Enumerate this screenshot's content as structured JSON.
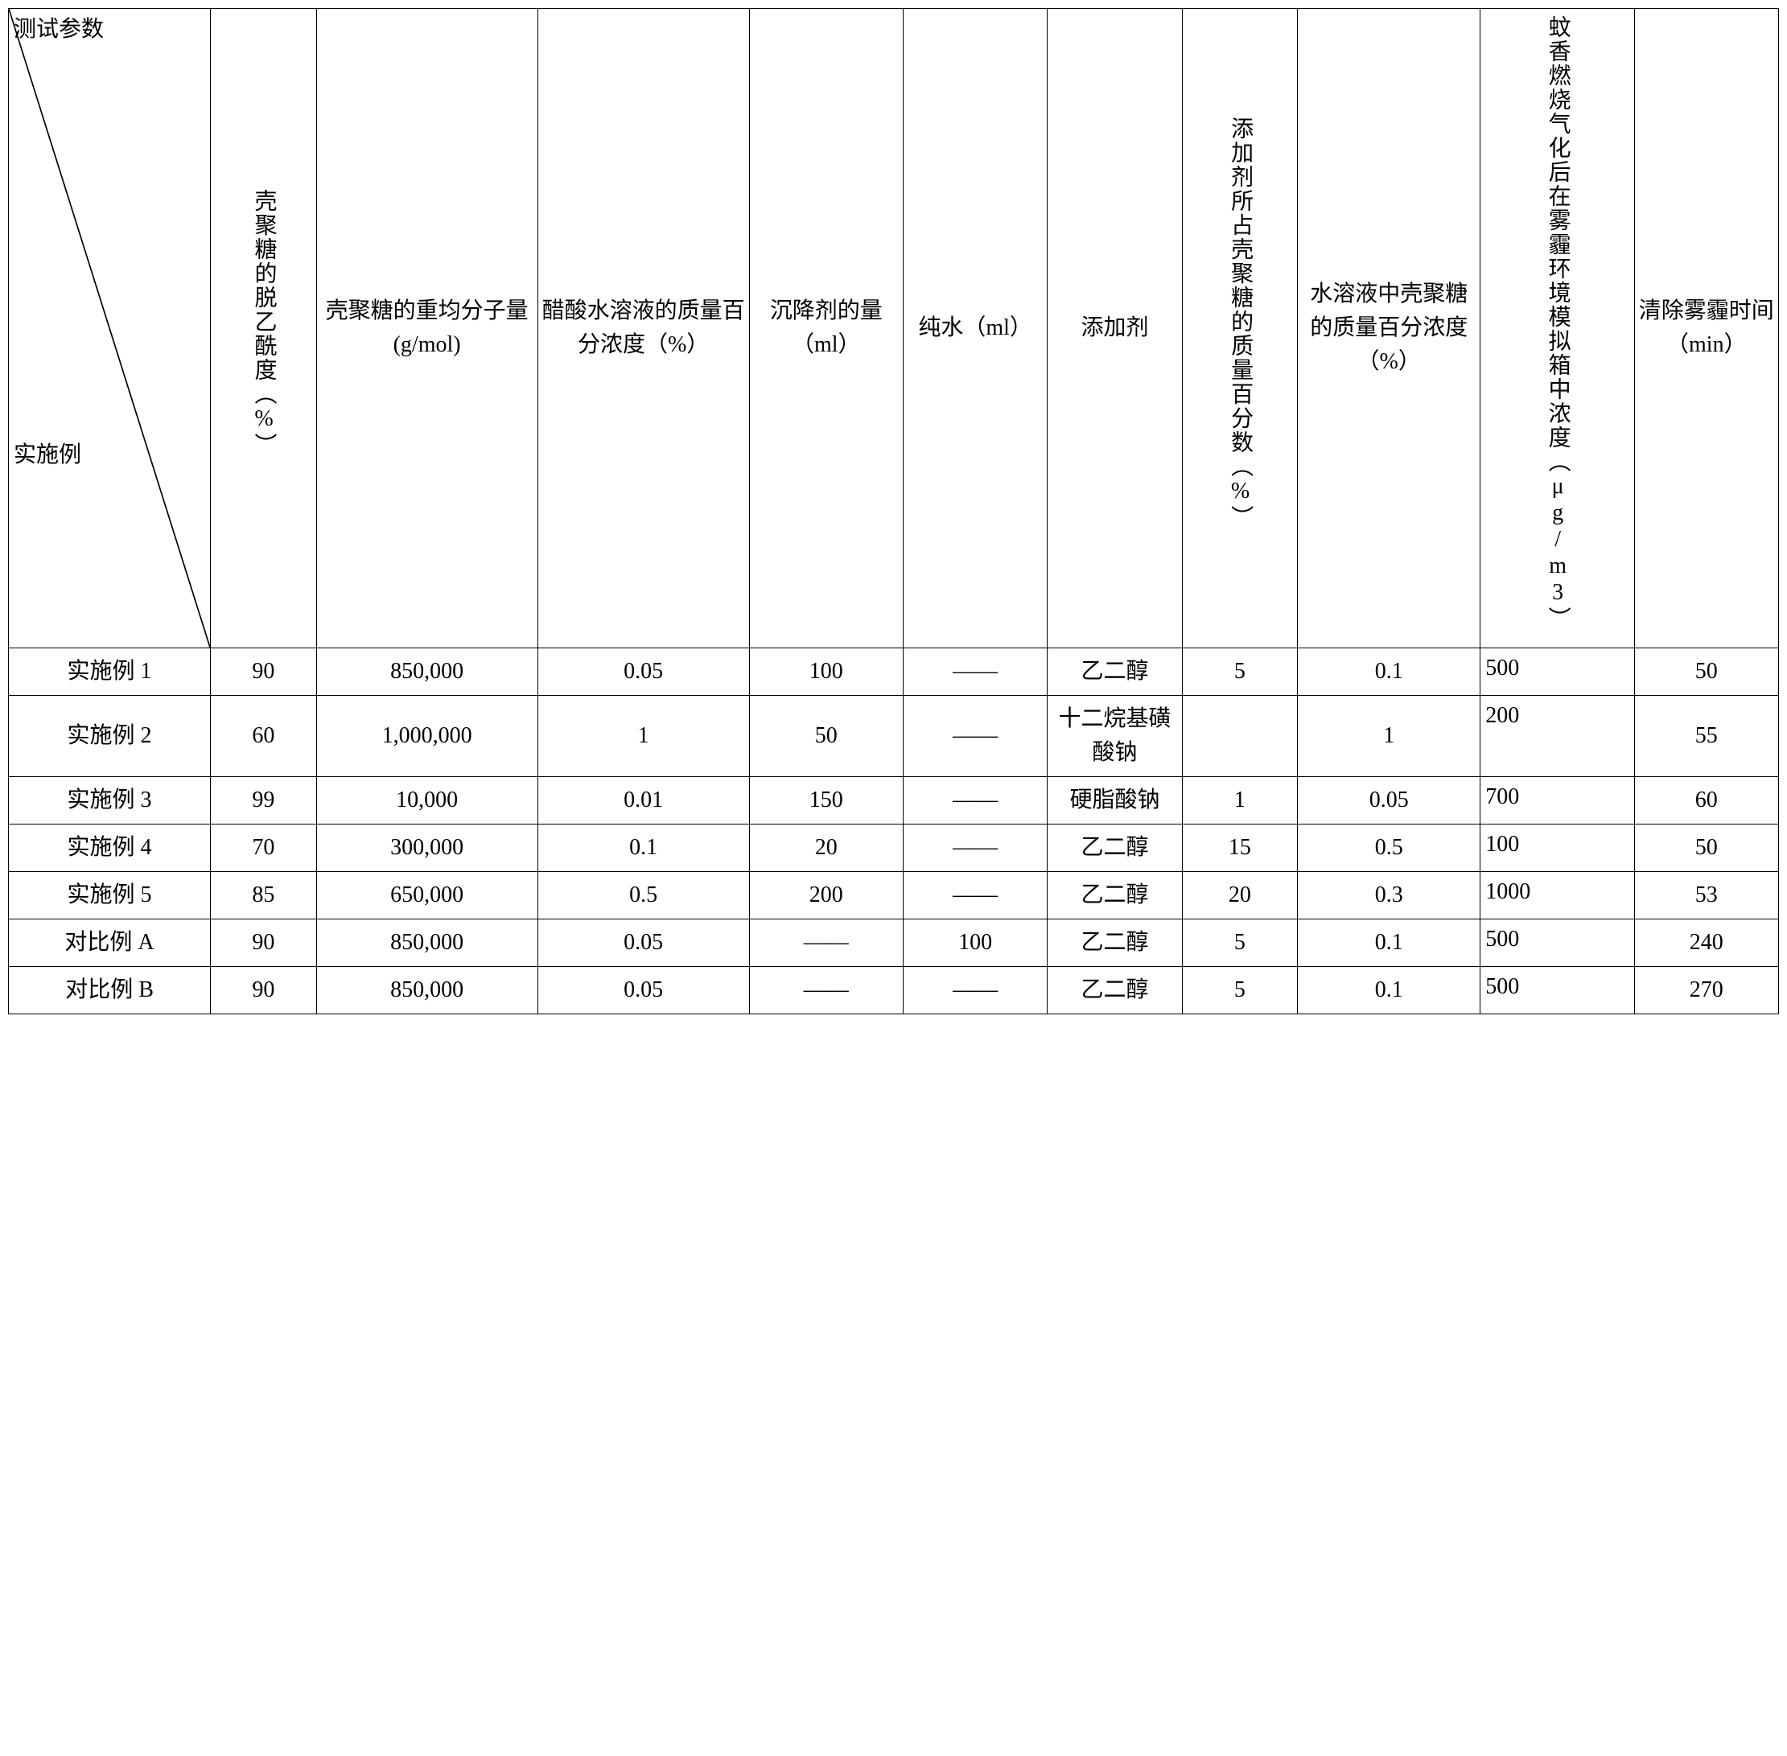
{
  "header": {
    "diag_top": "测试参数",
    "diag_bottom": "实施例",
    "cols": [
      "壳聚糖的脱乙酰度（%）",
      "壳聚糖的重均分子量(g/mol)",
      "醋酸水溶液的质量百分浓度（%）",
      "沉降剂的量（ml）",
      "纯水（ml）",
      "添加剂",
      "添加剂所占壳聚糖的质量百分数（%）",
      "水溶液中壳聚糖的质量百分浓度（%）",
      "蚊香燃烧气化后在雾霾环境模拟箱中浓度（μg/m3）",
      "清除雾霾时间（min）"
    ]
  },
  "rows": [
    {
      "label": "实施例 1",
      "c": [
        "90",
        "850,000",
        "0.05",
        "100",
        "——",
        "乙二醇",
        "5",
        "0.1",
        "500",
        "50"
      ]
    },
    {
      "label": "实施例 2",
      "c": [
        "60",
        "1,000,000",
        "1",
        "50",
        "——",
        "十二烷基磺酸钠",
        "",
        "1",
        "200",
        "55"
      ]
    },
    {
      "label": "实施例 3",
      "c": [
        "99",
        "10,000",
        "0.01",
        "150",
        "——",
        "硬脂酸钠",
        "1",
        "0.05",
        "700",
        "60"
      ]
    },
    {
      "label": "实施例 4",
      "c": [
        "70",
        "300,000",
        "0.1",
        "20",
        "——",
        "乙二醇",
        "15",
        "0.5",
        "100",
        "50"
      ]
    },
    {
      "label": "实施例 5",
      "c": [
        "85",
        "650,000",
        "0.5",
        "200",
        "——",
        "乙二醇",
        "20",
        "0.3",
        "1000",
        "53"
      ]
    },
    {
      "label": "对比例 A",
      "c": [
        "90",
        "850,000",
        "0.05",
        "——",
        "100",
        "乙二醇",
        "5",
        "0.1",
        "500",
        "240"
      ]
    },
    {
      "label": "对比例 B",
      "c": [
        "90",
        "850,000",
        "0.05",
        "——",
        "——",
        "乙二醇",
        "5",
        "0.1",
        "500",
        "270"
      ]
    }
  ],
  "style": {
    "border_color": "#000000",
    "background": "#ffffff",
    "font_family": "SimSun",
    "header_fontsize": 28,
    "cell_fontsize": 28,
    "vert_cols": [
      0,
      6,
      8
    ],
    "left_align_col": 8
  }
}
